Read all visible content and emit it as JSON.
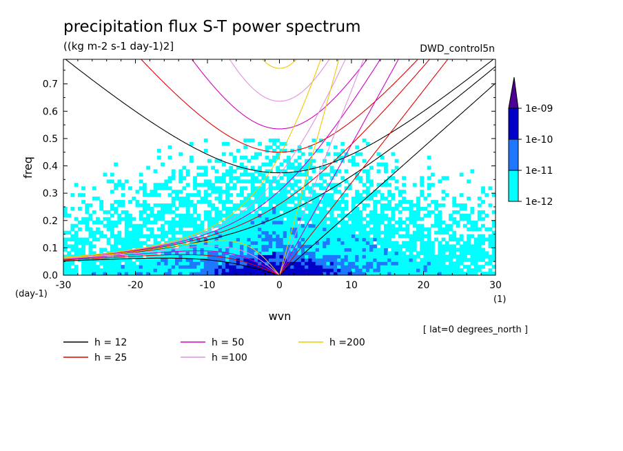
{
  "chart_data": {
    "type": "line",
    "title": "precipitation flux S-T power spectrum",
    "subtitle": "((kg m-2 s-1 day-1)2]",
    "run_label": "DWD_control5n",
    "xlabel": "wvn",
    "ylabel": "freq",
    "x_unit": "(1)",
    "y_unit": "(day-1)",
    "xlim": [
      -30,
      30
    ],
    "ylim": [
      0,
      0.79
    ],
    "x_ticks": [
      -30,
      -20,
      -10,
      0,
      10,
      20,
      30
    ],
    "x_tick_labels": [
      "-30",
      "-20",
      "-10",
      "0",
      "10",
      "20",
      "30"
    ],
    "y_ticks": [
      0,
      0.1,
      0.2,
      0.3,
      0.4,
      0.5,
      0.6,
      0.7
    ],
    "y_tick_labels": [
      "0.0",
      "0.1",
      "0.2",
      "0.3",
      "0.4",
      "0.5",
      "0.6",
      "0.7"
    ],
    "annotation": "[ lat=0 degrees_north ]",
    "colorbar": {
      "levels": [
        "1e-12",
        "1e-11",
        "1e-10",
        "1e-09"
      ],
      "colors": [
        "#00ffff",
        "#1e78ff",
        "#0000c8",
        "#4b0096"
      ]
    },
    "series": [
      {
        "name": "h = 12",
        "color": "#000000",
        "h": 12
      },
      {
        "name": "h = 25",
        "color": "#e00000",
        "h": 25
      },
      {
        "name": "h = 50",
        "color": "#d000c0",
        "h": 50
      },
      {
        "name": "h =100",
        "color": "#e090e0",
        "h": 100
      },
      {
        "name": "h =200",
        "color": "#f0c800",
        "h": 200
      }
    ]
  }
}
